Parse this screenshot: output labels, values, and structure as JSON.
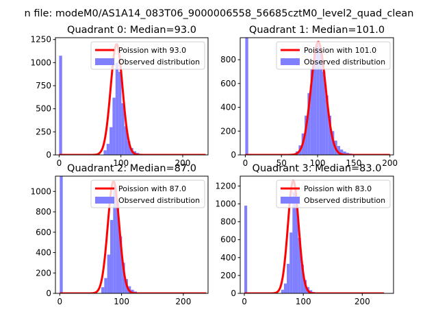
{
  "figure": {
    "suptitle": "n file: modeM0/AS1A14_083T06_9000006558_56685cztM0_level2_quad_clean"
  },
  "colors": {
    "histogram": "#7f7fff",
    "poisson_line": "#ff0000",
    "axes": "#000000"
  },
  "chart_data": [
    {
      "type": "bar",
      "title": "Quadrant 0: Median=93.0",
      "median": 93,
      "xlim": [
        -6,
        241
      ],
      "ylim": [
        0,
        1270
      ],
      "xticks": [
        0,
        100,
        200
      ],
      "xtick_labels": [
        "0",
        "100",
        "200"
      ],
      "yticks": [
        0,
        250,
        500,
        750,
        1000,
        1250
      ],
      "ytick_labels": [
        "0",
        "250",
        "500",
        "750",
        "1000",
        "1250"
      ],
      "legend": {
        "position": "top-right",
        "entries": [
          "Poission with 93.0",
          "Observed distribution"
        ]
      },
      "series": [
        {
          "name": "Observed distribution",
          "kind": "histogram",
          "bin_width": 4.8,
          "bins": [
            [
              0,
              1075
            ],
            [
              72.0,
              50
            ],
            [
              76.8,
              120
            ],
            [
              81.6,
              300
            ],
            [
              86.4,
              620
            ],
            [
              91.2,
              1000
            ],
            [
              96.0,
              900
            ],
            [
              100.8,
              560
            ],
            [
              105.6,
              310
            ],
            [
              110.4,
              150
            ],
            [
              115.2,
              75
            ],
            [
              120.0,
              40
            ],
            [
              124.8,
              22
            ],
            [
              129.6,
              12
            ],
            [
              134.4,
              6
            ],
            [
              139.2,
              4
            ]
          ]
        },
        {
          "name": "Poission with 93.0",
          "kind": "poisson",
          "mean": 93,
          "peak": 1200,
          "x_range": [
            0,
            237
          ]
        }
      ]
    },
    {
      "type": "bar",
      "title": "Quadrant 1: Median=101.0",
      "median": 101,
      "xlim": [
        -7,
        205
      ],
      "ylim": [
        0,
        985
      ],
      "xticks": [
        0,
        50,
        100,
        150,
        200
      ],
      "xtick_labels": [
        "0",
        "50",
        "100",
        "150",
        "200"
      ],
      "yticks": [
        0,
        200,
        400,
        600,
        800
      ],
      "ytick_labels": [
        "0",
        "200",
        "400",
        "600",
        "800"
      ],
      "legend": {
        "position": "top-right",
        "entries": [
          "Poission with 101.0",
          "Observed distribution"
        ]
      },
      "series": [
        {
          "name": "Observed distribution",
          "kind": "histogram",
          "bin_width": 4.1,
          "bins": [
            [
              0,
              985
            ],
            [
              69.7,
              30
            ],
            [
              73.8,
              80
            ],
            [
              77.9,
              180
            ],
            [
              82.0,
              330
            ],
            [
              86.1,
              520
            ],
            [
              90.2,
              720
            ],
            [
              94.3,
              870
            ],
            [
              98.4,
              930
            ],
            [
              102.5,
              860
            ],
            [
              106.6,
              700
            ],
            [
              110.7,
              500
            ],
            [
              114.8,
              330
            ],
            [
              118.9,
              200
            ],
            [
              123.0,
              120
            ],
            [
              127.1,
              75
            ],
            [
              131.2,
              45
            ],
            [
              135.3,
              28
            ],
            [
              139.4,
              18
            ],
            [
              143.5,
              12
            ],
            [
              147.6,
              8
            ],
            [
              151.7,
              5
            ],
            [
              155.8,
              3
            ]
          ]
        },
        {
          "name": "Poission with 101.0",
          "kind": "poisson",
          "mean": 101,
          "peak": 950,
          "x_range": [
            0,
            200
          ]
        }
      ]
    },
    {
      "type": "bar",
      "title": "Quadrant 2: Median=87.0",
      "median": 87,
      "xlim": [
        -7,
        240
      ],
      "ylim": [
        0,
        1150
      ],
      "xticks": [
        0,
        100,
        200
      ],
      "xtick_labels": [
        "0",
        "100",
        "200"
      ],
      "yticks": [
        0,
        200,
        400,
        600,
        800,
        1000
      ],
      "ytick_labels": [
        "0",
        "200",
        "400",
        "600",
        "800",
        "1000"
      ],
      "legend": {
        "position": "top-right",
        "entries": [
          "Poission with 87.0",
          "Observed distribution"
        ]
      },
      "series": [
        {
          "name": "Observed distribution",
          "kind": "histogram",
          "bin_width": 4.8,
          "bins": [
            [
              0,
              1150
            ],
            [
              67.2,
              60
            ],
            [
              72.0,
              150
            ],
            [
              76.8,
              380
            ],
            [
              81.6,
              720
            ],
            [
              86.4,
              1050
            ],
            [
              91.2,
              900
            ],
            [
              96.0,
              560
            ],
            [
              100.8,
              300
            ],
            [
              105.6,
              140
            ],
            [
              110.4,
              70
            ],
            [
              115.2,
              35
            ],
            [
              120.0,
              18
            ],
            [
              124.8,
              9
            ],
            [
              129.6,
              5
            ]
          ]
        },
        {
          "name": "Poission with 87.0",
          "kind": "poisson",
          "mean": 87,
          "peak": 1100,
          "x_range": [
            0,
            237
          ]
        }
      ]
    },
    {
      "type": "bar",
      "title": "Quadrant 3: Median=83.0",
      "median": 83,
      "xlim": [
        -7,
        253
      ],
      "ylim": [
        0,
        1310
      ],
      "xticks": [
        0,
        100,
        200
      ],
      "xtick_labels": [
        "0",
        "100",
        "200"
      ],
      "yticks": [
        0,
        200,
        400,
        600,
        800,
        1000,
        1200
      ],
      "ytick_labels": [
        "0",
        "200",
        "400",
        "600",
        "800",
        "1000",
        "1200"
      ],
      "legend": {
        "position": "top-right",
        "entries": [
          "Poission with 83.0",
          "Observed distribution"
        ]
      },
      "series": [
        {
          "name": "Observed distribution",
          "kind": "histogram",
          "bin_width": 4.8,
          "bins": [
            [
              0,
              980
            ],
            [
              62.4,
              40
            ],
            [
              67.2,
              110
            ],
            [
              72.0,
              330
            ],
            [
              76.8,
              680
            ],
            [
              81.6,
              1130
            ],
            [
              86.4,
              1010
            ],
            [
              91.2,
              620
            ],
            [
              96.0,
              320
            ],
            [
              100.8,
              150
            ],
            [
              105.6,
              70
            ],
            [
              110.4,
              35
            ],
            [
              115.2,
              16
            ],
            [
              120.0,
              8
            ],
            [
              124.8,
              4
            ]
          ]
        },
        {
          "name": "Poission with 83.0",
          "kind": "poisson",
          "mean": 83,
          "peak": 1260,
          "x_range": [
            0,
            237
          ]
        }
      ]
    }
  ]
}
